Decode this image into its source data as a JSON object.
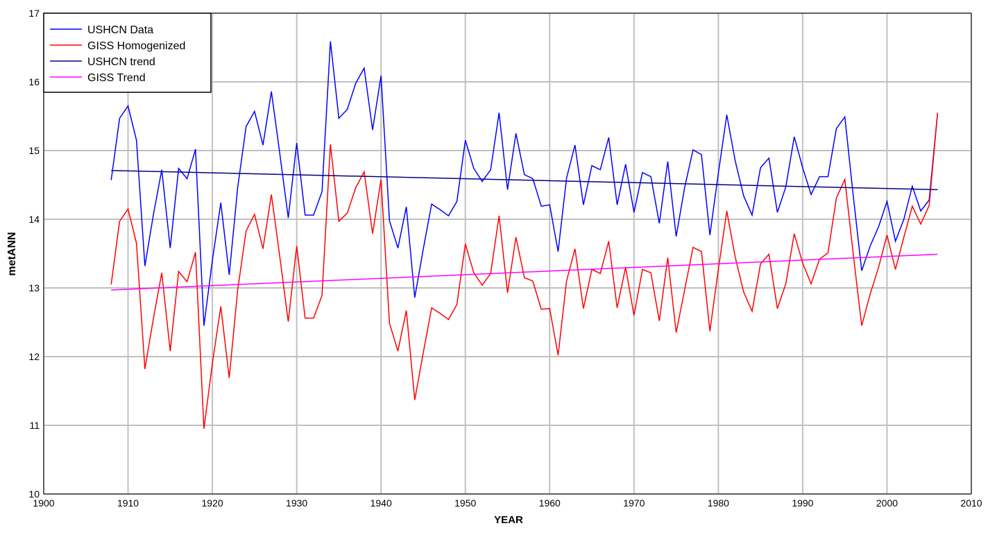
{
  "chart_data": {
    "type": "line",
    "xlabel": "YEAR",
    "ylabel": "metANN",
    "xlim": [
      1900,
      2010
    ],
    "xticks": [
      1900,
      1910,
      1920,
      1930,
      1940,
      1950,
      1960,
      1970,
      1980,
      1990,
      2000,
      2010
    ],
    "ylim": [
      10,
      17
    ],
    "yticks": [
      10,
      11,
      12,
      13,
      14,
      15,
      16,
      17
    ],
    "grid": true,
    "legend": "upper left",
    "x": [
      1908,
      1909,
      1910,
      1911,
      1912,
      1913,
      1914,
      1915,
      1916,
      1917,
      1918,
      1919,
      1920,
      1921,
      1922,
      1923,
      1924,
      1925,
      1926,
      1927,
      1928,
      1929,
      1930,
      1931,
      1932,
      1933,
      1934,
      1935,
      1936,
      1937,
      1938,
      1939,
      1940,
      1941,
      1942,
      1943,
      1944,
      1945,
      1946,
      1947,
      1948,
      1949,
      1950,
      1951,
      1952,
      1953,
      1954,
      1955,
      1956,
      1957,
      1958,
      1959,
      1960,
      1961,
      1962,
      1963,
      1964,
      1965,
      1966,
      1967,
      1968,
      1969,
      1970,
      1971,
      1972,
      1973,
      1974,
      1975,
      1976,
      1977,
      1978,
      1979,
      1980,
      1981,
      1982,
      1983,
      1984,
      1985,
      1986,
      1987,
      1988,
      1989,
      1990,
      1991,
      1992,
      1993,
      1994,
      1995,
      1996,
      1997,
      1998,
      1999,
      2000,
      2001,
      2002,
      2003,
      2004,
      2005,
      2006
    ],
    "series": [
      {
        "name": "USHCN Data",
        "color": "#0000ff",
        "values": [
          14.57,
          15.47,
          15.65,
          15.15,
          13.32,
          14.06,
          14.72,
          13.58,
          14.74,
          14.59,
          15.02,
          12.45,
          13.4,
          14.24,
          13.19,
          14.46,
          15.35,
          15.57,
          15.08,
          15.86,
          14.95,
          14.02,
          15.11,
          14.06,
          14.06,
          14.4,
          16.59,
          15.47,
          15.6,
          15.98,
          16.2,
          15.3,
          16.09,
          13.98,
          13.58,
          14.18,
          12.86,
          13.56,
          14.22,
          14.14,
          14.05,
          14.26,
          15.15,
          14.74,
          14.55,
          14.72,
          15.55,
          14.43,
          15.25,
          14.65,
          14.59,
          14.19,
          14.21,
          13.53,
          14.6,
          15.08,
          14.21,
          14.78,
          14.72,
          15.19,
          14.21,
          14.8,
          14.1,
          14.68,
          14.62,
          13.94,
          14.84,
          13.75,
          14.46,
          15.01,
          14.94,
          13.77,
          14.67,
          15.52,
          14.85,
          14.34,
          14.06,
          14.75,
          14.89,
          14.1,
          14.47,
          15.2,
          14.75,
          14.36,
          14.62,
          14.62,
          15.32,
          15.49,
          14.34,
          13.25,
          13.61,
          13.89,
          14.26,
          13.68,
          14.0,
          14.48,
          14.12,
          14.28,
          15.55
        ]
      },
      {
        "name": "GISS Homogenized",
        "color": "#ff0000",
        "values": [
          13.05,
          13.97,
          14.15,
          13.65,
          11.82,
          12.55,
          13.22,
          12.08,
          13.24,
          13.09,
          13.52,
          10.95,
          11.9,
          12.73,
          11.69,
          12.97,
          13.83,
          14.07,
          13.57,
          14.36,
          13.45,
          12.51,
          13.61,
          12.56,
          12.56,
          12.89,
          15.09,
          13.97,
          14.09,
          14.46,
          14.69,
          13.79,
          14.58,
          12.49,
          12.08,
          12.67,
          11.37,
          12.05,
          12.71,
          12.63,
          12.54,
          12.76,
          13.64,
          13.22,
          13.04,
          13.21,
          14.05,
          12.93,
          13.74,
          13.15,
          13.1,
          12.69,
          12.7,
          12.02,
          13.1,
          13.57,
          12.7,
          13.27,
          13.21,
          13.68,
          12.71,
          13.3,
          12.6,
          13.27,
          13.22,
          12.52,
          13.44,
          12.35,
          12.97,
          13.59,
          13.53,
          12.37,
          13.27,
          14.12,
          13.45,
          12.94,
          12.66,
          13.35,
          13.49,
          12.7,
          13.06,
          13.79,
          13.36,
          13.06,
          13.42,
          13.51,
          14.31,
          14.58,
          13.49,
          12.45,
          12.91,
          13.3,
          13.77,
          13.27,
          13.74,
          14.19,
          13.93,
          14.2,
          15.55
        ]
      },
      {
        "name": "USHCN trend",
        "color": "#000080",
        "x": [
          1908,
          2006
        ],
        "values": [
          14.71,
          14.43
        ]
      },
      {
        "name": "GISS Trend",
        "color": "#ff00ff",
        "x": [
          1908,
          2006
        ],
        "values": [
          12.97,
          13.49
        ]
      }
    ]
  }
}
